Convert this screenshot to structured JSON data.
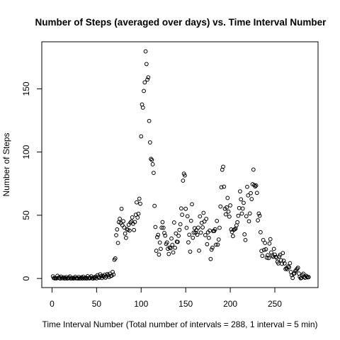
{
  "chart_data": {
    "type": "scatter",
    "title": "Number of Steps (averaged over days) vs. Time Interval Number",
    "xlabel": "Time Interval Number (Total number of intervals = 288, 1 interval = 5 min)",
    "ylabel": "Number of Steps",
    "xlim": [
      -11.5,
      298.5
    ],
    "ylim": [
      -7.2,
      187.2
    ],
    "xticks": [
      0,
      50,
      100,
      150,
      200,
      250
    ],
    "yticks": [
      0,
      50,
      100,
      150
    ],
    "grid": false,
    "legend": "none",
    "marker": "open-circle",
    "series": [
      {
        "values": [
          [
            1,
            1.7
          ],
          [
            2,
            0.3
          ],
          [
            3,
            0.1
          ],
          [
            4,
            0.2
          ],
          [
            5,
            0.1
          ],
          [
            6,
            2.1
          ],
          [
            7,
            0.5
          ],
          [
            8,
            0.8
          ],
          [
            9,
            0
          ],
          [
            10,
            1.5
          ],
          [
            11,
            0.2
          ],
          [
            12,
            0.3
          ],
          [
            13,
            0.9
          ],
          [
            14,
            0
          ],
          [
            15,
            0.2
          ],
          [
            16,
            1.1
          ],
          [
            17,
            0
          ],
          [
            18,
            0.2
          ],
          [
            19,
            0.6
          ],
          [
            20,
            1.6
          ],
          [
            21,
            0
          ],
          [
            22,
            0.1
          ],
          [
            23,
            0.5
          ],
          [
            24,
            0
          ],
          [
            25,
            0.3
          ],
          [
            26,
            1.3
          ],
          [
            27,
            0.1
          ],
          [
            28,
            0.4
          ],
          [
            29,
            0
          ],
          [
            30,
            1.2
          ],
          [
            31,
            0
          ],
          [
            32,
            0.2
          ],
          [
            33,
            0.9
          ],
          [
            34,
            0
          ],
          [
            35,
            1.4
          ],
          [
            36,
            0.2
          ],
          [
            37,
            0.1
          ],
          [
            38,
            0.6
          ],
          [
            39,
            0
          ],
          [
            40,
            1.8
          ],
          [
            41,
            0.3
          ],
          [
            42,
            0.1
          ],
          [
            43,
            0.5
          ],
          [
            44,
            1.7
          ],
          [
            45,
            0.2
          ],
          [
            46,
            0
          ],
          [
            47,
            0.9
          ],
          [
            48,
            0.3
          ],
          [
            49,
            1.5
          ],
          [
            50,
            0.1
          ],
          [
            51,
            2.6
          ],
          [
            52,
            1.1
          ],
          [
            53,
            0.5
          ],
          [
            54,
            3.3
          ],
          [
            55,
            1.8
          ],
          [
            56,
            0.4
          ],
          [
            57,
            2.1
          ],
          [
            58,
            1.5
          ],
          [
            59,
            2.9
          ],
          [
            60,
            0.6
          ],
          [
            61,
            1.7
          ],
          [
            62,
            3.5
          ],
          [
            63,
            2.6
          ],
          [
            64,
            1.2
          ],
          [
            65,
            3.8
          ],
          [
            66,
            1.9
          ],
          [
            67,
            2.3
          ],
          [
            68,
            5.2
          ],
          [
            69,
            3.1
          ],
          [
            70,
            14.8
          ],
          [
            71,
            15.9
          ],
          [
            72,
            34.2
          ],
          [
            73,
            38.8
          ],
          [
            74,
            28.1
          ],
          [
            75,
            44.6
          ],
          [
            76,
            47.2
          ],
          [
            77,
            43.9
          ],
          [
            78,
            55.1
          ],
          [
            79,
            42.1
          ],
          [
            80,
            45.3
          ],
          [
            81,
            40.3
          ],
          [
            82,
            35.5
          ],
          [
            83,
            32.1
          ],
          [
            84,
            39.0
          ],
          [
            85,
            38.5
          ],
          [
            86,
            42.5
          ],
          [
            87,
            37.9
          ],
          [
            88,
            44.2
          ],
          [
            89,
            45.1
          ],
          [
            90,
            48.3
          ],
          [
            91,
            43.3
          ],
          [
            92,
            38.3
          ],
          [
            93,
            44.7
          ],
          [
            94,
            50.4
          ],
          [
            95,
            60.2
          ],
          [
            96,
            48.2
          ],
          [
            97,
            51.2
          ],
          [
            98,
            63.1
          ],
          [
            99,
            59.1
          ],
          [
            100,
            112.4
          ],
          [
            101,
            137.6
          ],
          [
            102,
            135.1
          ],
          [
            103,
            148.3
          ],
          [
            104,
            155.1
          ],
          [
            105,
            179.6
          ],
          [
            106,
            169.6
          ],
          [
            107,
            157.3
          ],
          [
            108,
            159.1
          ],
          [
            109,
            124.6
          ],
          [
            110,
            107.6
          ],
          [
            111,
            94.6
          ],
          [
            112,
            93.8
          ],
          [
            113,
            90.3
          ],
          [
            114,
            83.5
          ],
          [
            115,
            57.4
          ],
          [
            116,
            40.7
          ],
          [
            117,
            21.9
          ],
          [
            118,
            32.7
          ],
          [
            119,
            34.5
          ],
          [
            120,
            18.9
          ],
          [
            121,
            28.4
          ],
          [
            122,
            23.4
          ],
          [
            123,
            40.2
          ],
          [
            124,
            44.6
          ],
          [
            125,
            40.1
          ],
          [
            126,
            36.0
          ],
          [
            127,
            33.9
          ],
          [
            128,
            27.3
          ],
          [
            129,
            28.5
          ],
          [
            130,
            23.5
          ],
          [
            131,
            19.4
          ],
          [
            132,
            24.5
          ],
          [
            133,
            23.9
          ],
          [
            134,
            31.6
          ],
          [
            135,
            26.6
          ],
          [
            136,
            20.6
          ],
          [
            137,
            44.3
          ],
          [
            138,
            24.3
          ],
          [
            139,
            35.6
          ],
          [
            140,
            29.1
          ],
          [
            141,
            28.9
          ],
          [
            142,
            33.7
          ],
          [
            143,
            38.4
          ],
          [
            144,
            42.9
          ],
          [
            145,
            55.4
          ],
          [
            146,
            50.4
          ],
          [
            147,
            77.4
          ],
          [
            148,
            82.9
          ],
          [
            149,
            81.5
          ],
          [
            150,
            55.1
          ],
          [
            151,
            40.1
          ],
          [
            152,
            49.2
          ],
          [
            153,
            28.6
          ],
          [
            154,
            34.6
          ],
          [
            155,
            21.2
          ],
          [
            156,
            45.6
          ],
          [
            157,
            58.7
          ],
          [
            158,
            32.2
          ],
          [
            159,
            36.3
          ],
          [
            160,
            39.8
          ],
          [
            161,
            36.2
          ],
          [
            162,
            38.2
          ],
          [
            163,
            34.6
          ],
          [
            164,
            40.2
          ],
          [
            165,
            22.0
          ],
          [
            166,
            49.1
          ],
          [
            167,
            36.3
          ],
          [
            168,
            44.0
          ],
          [
            169,
            40.4
          ],
          [
            170,
            51.9
          ],
          [
            171,
            45.1
          ],
          [
            172,
            34.3
          ],
          [
            173,
            47.1
          ],
          [
            174,
            27.1
          ],
          [
            175,
            36.5
          ],
          [
            176,
            32.1
          ],
          [
            177,
            37.9
          ],
          [
            178,
            15.4
          ],
          [
            179,
            22.8
          ],
          [
            180,
            24.4
          ],
          [
            181,
            37.5
          ],
          [
            182,
            37.6
          ],
          [
            183,
            38.9
          ],
          [
            184,
            26.7
          ],
          [
            185,
            45.5
          ],
          [
            186,
            26.8
          ],
          [
            187,
            30.8
          ],
          [
            188,
            40.1
          ],
          [
            189,
            56.9
          ],
          [
            190,
            72.1
          ],
          [
            191,
            86.0
          ],
          [
            192,
            88.4
          ],
          [
            193,
            72.6
          ],
          [
            194,
            55.1
          ],
          [
            195,
            50.7
          ],
          [
            196,
            56.2
          ],
          [
            197,
            63.7
          ],
          [
            198,
            52.9
          ],
          [
            199,
            48.9
          ],
          [
            200,
            57.8
          ],
          [
            201,
            38.8
          ],
          [
            202,
            36.8
          ],
          [
            203,
            33.5
          ],
          [
            204,
            38.5
          ],
          [
            205,
            38.9
          ],
          [
            206,
            39.5
          ],
          [
            207,
            42.0
          ],
          [
            208,
            44.5
          ],
          [
            209,
            49.6
          ],
          [
            210,
            55.7
          ],
          [
            211,
            68.9
          ],
          [
            212,
            62.6
          ],
          [
            213,
            51.3
          ],
          [
            214,
            55.3
          ],
          [
            215,
            59.8
          ],
          [
            216,
            34.9
          ],
          [
            217,
            30.4
          ],
          [
            218,
            49.2
          ],
          [
            219,
            72.5
          ],
          [
            220,
            65.7
          ],
          [
            221,
            45.2
          ],
          [
            222,
            51.4
          ],
          [
            223,
            67.5
          ],
          [
            224,
            62.8
          ],
          [
            225,
            74.6
          ],
          [
            226,
            86.1
          ],
          [
            227,
            73.9
          ],
          [
            228,
            72.8
          ],
          [
            229,
            73.5
          ],
          [
            230,
            67.7
          ],
          [
            231,
            46.0
          ],
          [
            232,
            51.3
          ],
          [
            233,
            49.6
          ],
          [
            234,
            36.6
          ],
          [
            235,
            21.8
          ],
          [
            236,
            17.9
          ],
          [
            237,
            30.4
          ],
          [
            238,
            22.6
          ],
          [
            239,
            28.1
          ],
          [
            240,
            23.1
          ],
          [
            241,
            16.5
          ],
          [
            242,
            18.4
          ],
          [
            243,
            16.1
          ],
          [
            244,
            27.6
          ],
          [
            245,
            31.1
          ],
          [
            246,
            20.6
          ],
          [
            247,
            18.1
          ],
          [
            248,
            17.2
          ],
          [
            249,
            23.4
          ],
          [
            250,
            18.9
          ],
          [
            251,
            17.1
          ],
          [
            252,
            16.4
          ],
          [
            253,
            13.2
          ],
          [
            254,
            11.9
          ],
          [
            255,
            17.4
          ],
          [
            256,
            18.8
          ],
          [
            257,
            14.4
          ],
          [
            258,
            11.6
          ],
          [
            259,
            20.1
          ],
          [
            260,
            14.0
          ],
          [
            261,
            11.9
          ],
          [
            262,
            7.5
          ],
          [
            263,
            8.2
          ],
          [
            264,
            7.4
          ],
          [
            265,
            9.5
          ],
          [
            266,
            8.8
          ],
          [
            267,
            12.1
          ],
          [
            268,
            5.1
          ],
          [
            269,
            2.6
          ],
          [
            270,
            0.4
          ],
          [
            271,
            3.7
          ],
          [
            272,
            4.0
          ],
          [
            273,
            5.9
          ],
          [
            274,
            6.7
          ],
          [
            275,
            7.6
          ],
          [
            276,
            8.5
          ],
          [
            277,
            3.9
          ],
          [
            278,
            1.4
          ],
          [
            279,
            0.2
          ],
          [
            280,
            0.5
          ],
          [
            281,
            2.6
          ],
          [
            282,
            3.8
          ],
          [
            283,
            1.3
          ],
          [
            284,
            0.6
          ],
          [
            285,
            2.2
          ],
          [
            286,
            1.5
          ],
          [
            287,
            0.9
          ],
          [
            288,
            1.1
          ]
        ]
      }
    ]
  }
}
